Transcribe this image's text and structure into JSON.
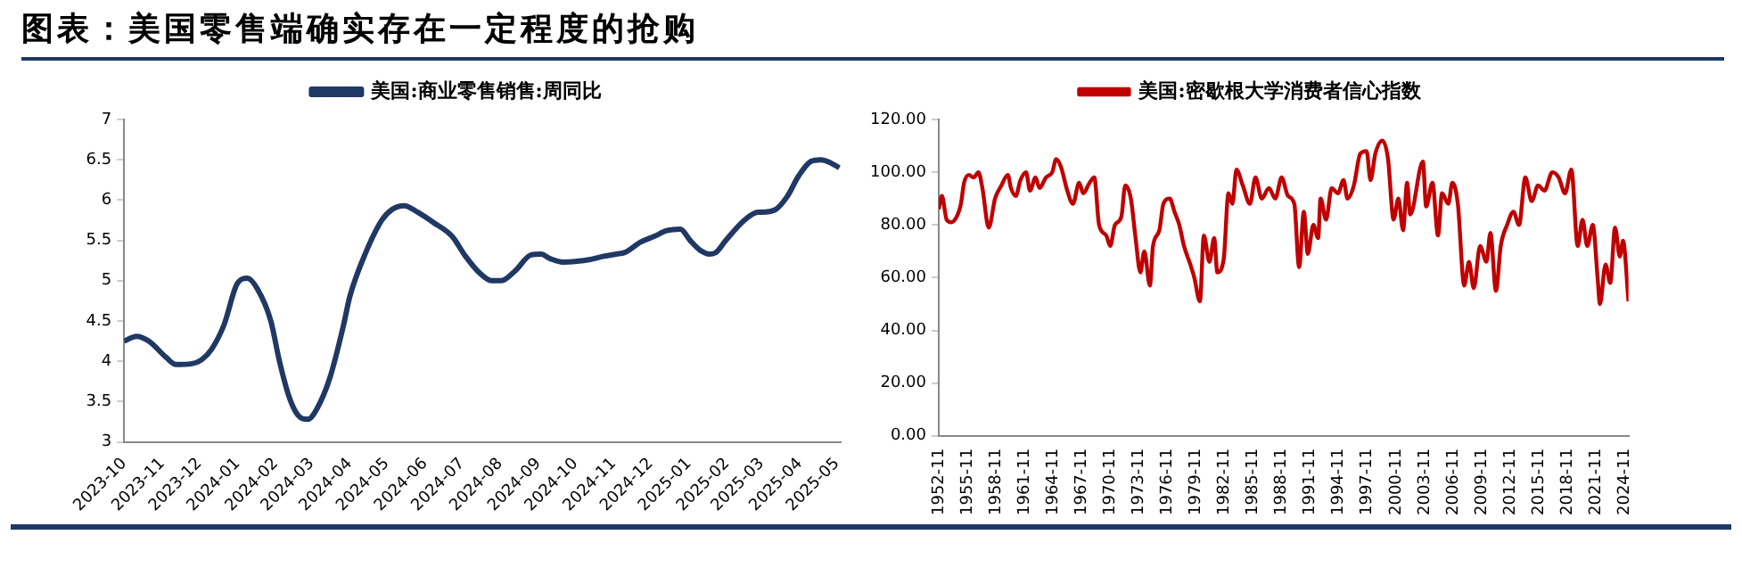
{
  "chart_data": [
    {
      "type": "line",
      "title": "图表：美国零售端确实存在一定程度的抢购",
      "legend": "top",
      "grid": false,
      "marker": "none",
      "line_style": "solid",
      "xlim": [
        "2023-10-01",
        "2025-05-04"
      ],
      "xticks": [
        "2023-10",
        "2023-11",
        "2023-12",
        "2024-01",
        "2024-02",
        "2024-03",
        "2024-04",
        "2024-05",
        "2024-06",
        "2024-07",
        "2024-08",
        "2024-09",
        "2024-10",
        "2024-11",
        "2024-12",
        "2025-01",
        "2025-02",
        "2025-03",
        "2025-04",
        "2025-05"
      ],
      "ylim": [
        3,
        7
      ],
      "yticks": [
        3,
        3.5,
        4,
        4.5,
        5,
        5.5,
        6,
        6.5,
        7
      ],
      "series": [
        {
          "name": "美国:商业零售销售:周同比",
          "color": "#203864",
          "x": [
            "2023-10-01",
            "2023-10-11",
            "2023-10-21",
            "2023-11-04",
            "2023-11-12",
            "2023-11-25",
            "2023-12-03",
            "2023-12-11",
            "2023-12-21",
            "2024-01-01",
            "2024-01-09",
            "2024-01-17",
            "2024-01-28",
            "2024-02-04",
            "2024-02-12",
            "2024-02-19",
            "2024-02-27",
            "2024-03-05",
            "2024-03-16",
            "2024-03-27",
            "2024-04-01",
            "2024-04-14",
            "2024-04-27",
            "2024-05-05",
            "2024-05-15",
            "2024-05-26",
            "2024-06-08",
            "2024-06-23",
            "2024-07-04",
            "2024-07-15",
            "2024-07-25",
            "2024-08-02",
            "2024-08-13",
            "2024-08-26",
            "2024-09-03",
            "2024-09-11",
            "2024-09-21",
            "2024-10-02",
            "2024-10-12",
            "2024-10-23",
            "2024-11-03",
            "2024-11-10",
            "2024-11-23",
            "2024-12-04",
            "2024-12-14",
            "2024-12-25",
            "2025-01-02",
            "2025-01-10",
            "2025-01-18",
            "2025-01-23",
            "2025-01-31",
            "2025-02-15",
            "2025-02-26",
            "2025-03-01",
            "2025-03-12",
            "2025-03-22",
            "2025-03-31",
            "2025-04-10",
            "2025-04-18",
            "2025-04-25",
            "2025-05-03"
          ],
          "values": [
            4.25,
            4.31,
            4.25,
            4.05,
            3.96,
            3.97,
            4.02,
            4.15,
            4.45,
            4.97,
            5.03,
            4.9,
            4.5,
            4.0,
            3.55,
            3.33,
            3.28,
            3.4,
            3.8,
            4.45,
            4.8,
            5.35,
            5.75,
            5.88,
            5.93,
            5.85,
            5.72,
            5.55,
            5.3,
            5.1,
            5.0,
            5.0,
            5.12,
            5.32,
            5.33,
            5.27,
            5.23,
            5.24,
            5.26,
            5.3,
            5.33,
            5.35,
            5.48,
            5.55,
            5.62,
            5.64,
            5.5,
            5.38,
            5.33,
            5.35,
            5.5,
            5.75,
            5.85,
            5.85,
            5.88,
            6.05,
            6.3,
            6.48,
            6.5,
            6.47,
            6.4
          ]
        }
      ]
    },
    {
      "type": "line",
      "legend": "top",
      "grid": false,
      "marker": "none",
      "line_style": "solid",
      "xlim": [
        "1952-11",
        "2025-04"
      ],
      "xticks": [
        "1952-11",
        "1955-11",
        "1958-11",
        "1961-11",
        "1964-11",
        "1967-11",
        "1970-11",
        "1973-11",
        "1976-11",
        "1979-11",
        "1982-11",
        "1985-11",
        "1988-11",
        "1991-11",
        "1994-11",
        "1997-11",
        "2000-11",
        "2003-11",
        "2006-11",
        "2009-11",
        "2012-11",
        "2015-11",
        "2018-11",
        "2021-11",
        "2024-11"
      ],
      "ylim": [
        0,
        120
      ],
      "yticks": [
        {
          "value": 0,
          "label": "0.00"
        },
        {
          "value": 20,
          "label": "20.00"
        },
        {
          "value": 40,
          "label": "40.00"
        },
        {
          "value": 60,
          "label": "60.00"
        },
        {
          "value": 80,
          "label": "80.00"
        },
        {
          "value": 100,
          "label": "100.00"
        },
        {
          "value": 120,
          "label": "120.00"
        }
      ],
      "series": [
        {
          "name": "美国:密歇根大学消费者信心指数",
          "color": "#c00000",
          "x": [
            "1952-11",
            "1953-03",
            "1953-09",
            "1954-03",
            "1954-11",
            "1955-03",
            "1955-07",
            "1956-01",
            "1956-07",
            "1957-01",
            "1957-06",
            "1958-02",
            "1958-10",
            "1959-06",
            "1960-02",
            "1960-06",
            "1960-12",
            "1961-06",
            "1962-01",
            "1962-06",
            "1963-01",
            "1963-06",
            "1964-02",
            "1964-10",
            "1965-03",
            "1965-09",
            "1966-05",
            "1966-12",
            "1967-08",
            "1968-01",
            "1968-09",
            "1969-03",
            "1969-09",
            "1970-06",
            "1970-11",
            "1971-05",
            "1972-01",
            "1972-06",
            "1973-01",
            "1973-07",
            "1974-01",
            "1974-06",
            "1975-01",
            "1975-05",
            "1976-01",
            "1976-06",
            "1977-02",
            "1977-08",
            "1978-02",
            "1978-08",
            "1979-04",
            "1979-09",
            "1980-04",
            "1980-09",
            "1981-04",
            "1981-10",
            "1982-02",
            "1982-10",
            "1983-04",
            "1983-09",
            "1984-02",
            "1984-10",
            "1985-07",
            "1986-02",
            "1986-10",
            "1987-07",
            "1988-03",
            "1988-11",
            "1989-07",
            "1990-03",
            "1990-09",
            "1991-03",
            "1991-08",
            "1992-03",
            "1992-09",
            "1992-12",
            "1993-07",
            "1994-02",
            "1994-10",
            "1995-05",
            "1995-10",
            "1996-06",
            "1997-02",
            "1997-10",
            "1998-03",
            "1998-09",
            "1999-06",
            "2000-01",
            "2000-08",
            "2001-02",
            "2001-08",
            "2002-01",
            "2002-05",
            "2003-09",
            "2004-01",
            "2004-09",
            "2005-04",
            "2005-09",
            "2006-05",
            "2006-10",
            "2007-05",
            "2008-01",
            "2008-07",
            "2009-01",
            "2009-09",
            "2010-05",
            "2010-10",
            "2011-05",
            "2011-11",
            "2012-07",
            "2013-03",
            "2013-10",
            "2014-06",
            "2015-02",
            "2015-10",
            "2016-06",
            "2017-04",
            "2017-12",
            "2018-08",
            "2019-04",
            "2019-12",
            "2020-06",
            "2020-12",
            "2021-07",
            "2022-01",
            "2022-04",
            "2022-11",
            "2023-05",
            "2023-11",
            "2024-05",
            "2024-09",
            "2025-04"
          ],
          "values": [
            86,
            91,
            82,
            81,
            84,
            88,
            96,
            99,
            98,
            100,
            94,
            79,
            90,
            95,
            99,
            94,
            91,
            97,
            100,
            93,
            98,
            94,
            98,
            100,
            105,
            102,
            93,
            88,
            96,
            92,
            96,
            98,
            80,
            76,
            72,
            80,
            83,
            95,
            90,
            75,
            62,
            70,
            57,
            72,
            78,
            88,
            90,
            85,
            80,
            72,
            65,
            60,
            51,
            76,
            66,
            75,
            62,
            67,
            92,
            88,
            101,
            95,
            88,
            98,
            90,
            94,
            90,
            98,
            91,
            88,
            64,
            85,
            69,
            80,
            75,
            90,
            82,
            94,
            92,
            97,
            90,
            95,
            107,
            108,
            97,
            107,
            112,
            105,
            82,
            90,
            78,
            96,
            84,
            104,
            87,
            96,
            76,
            92,
            88,
            96,
            88,
            57,
            66,
            56,
            72,
            66,
            77,
            55,
            72,
            80,
            85,
            80,
            98,
            89,
            95,
            93,
            100,
            98,
            92,
            101,
            72,
            82,
            72,
            80,
            60,
            50,
            65,
            58,
            79,
            68,
            74,
            51
          ]
        }
      ]
    }
  ]
}
